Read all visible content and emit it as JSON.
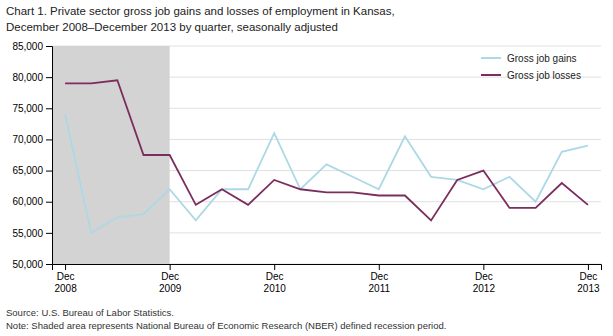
{
  "chart_data": {
    "type": "line",
    "title": "Chart 1. Private sector gross job gains and losses  of employment in Kansas,",
    "subtitle": "December 2008–December 2013  by quarter, seasonally adjusted",
    "source": "Source: U.S. Bureau of Labor Statistics.",
    "note": "Note: Shaded area represents National Bureau of Economic Research (NBER) defined recession period.",
    "categories": [
      "Dec\n2008",
      null,
      null,
      null,
      "Dec\n2009",
      null,
      null,
      null,
      "Dec\n2010",
      null,
      null,
      null,
      "Dec\n2011",
      null,
      null,
      null,
      "Dec\n2012",
      null,
      null,
      null,
      "Dec\n2013"
    ],
    "xlim": [
      -0.5,
      20.5
    ],
    "ylim": [
      50000,
      85000
    ],
    "yticks": [
      {
        "value": 50000,
        "label": "50,000"
      },
      {
        "value": 55000,
        "label": "55,000"
      },
      {
        "value": 60000,
        "label": "60,000"
      },
      {
        "value": 65000,
        "label": "65,000"
      },
      {
        "value": 70000,
        "label": "70,000"
      },
      {
        "value": 75000,
        "label": "75,000"
      },
      {
        "value": 80000,
        "label": "80,000"
      },
      {
        "value": 85000,
        "label": "85,000"
      }
    ],
    "grid": true,
    "legend": "upper-right",
    "recession": {
      "start": -0.5,
      "end": 4.0,
      "color": "#d3d3d3"
    },
    "series": [
      {
        "name": "Gross job gains",
        "color": "#add8e6",
        "values": [
          74000,
          55000,
          57500,
          58000,
          62000,
          57000,
          62000,
          62000,
          71000,
          62000,
          66000,
          64000,
          62000,
          70500,
          64000,
          63500,
          62000,
          64000,
          60000,
          68000,
          69000
        ]
      },
      {
        "name": "Gross job losses",
        "color": "#7b2d5e",
        "values": [
          79000,
          79000,
          79500,
          67500,
          67500,
          59500,
          62000,
          59500,
          63500,
          62000,
          61500,
          61500,
          61000,
          61000,
          57000,
          63500,
          65000,
          59000,
          59000,
          63000,
          59500
        ]
      }
    ]
  }
}
